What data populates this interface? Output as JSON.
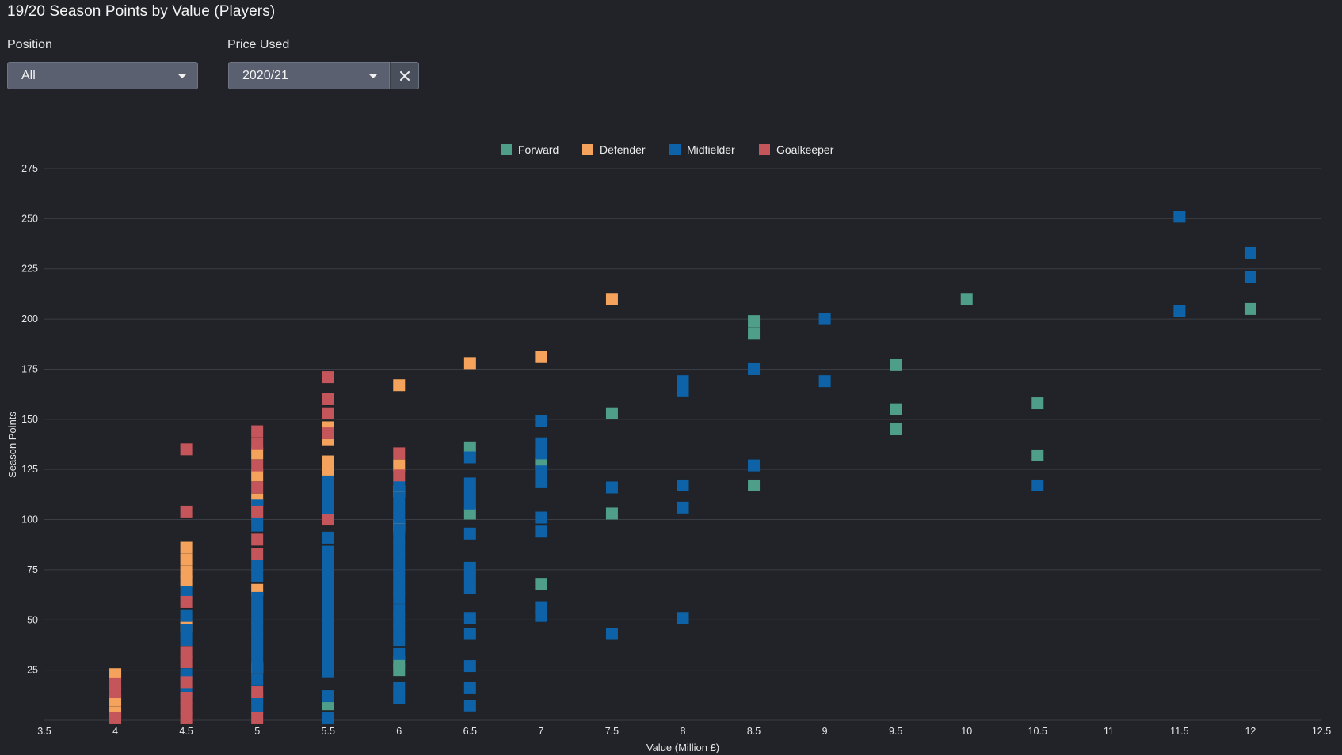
{
  "title": "19/20 Season Points by Value (Players)",
  "filters": {
    "position": {
      "label": "Position",
      "value": "All"
    },
    "price_used": {
      "label": "Price Used",
      "value": "2020/21"
    }
  },
  "icons": {
    "dropdown": "chevron-down-icon",
    "clear": "close-icon"
  },
  "colors": {
    "background": "#212328",
    "Forward": "#4e9e8a",
    "Defender": "#f5a35c",
    "Midfielder": "#0e63a8",
    "Goalkeeper": "#c4555a",
    "gridline": "#3a3d44"
  },
  "chart_data": {
    "type": "scatter",
    "title": "",
    "xlabel": "Value (Million £)",
    "ylabel": "Season Points",
    "xlim": [
      3.5,
      12.5
    ],
    "ylim": [
      0,
      275
    ],
    "x_ticks": [
      "3.5",
      "4",
      "4.5",
      "5",
      "5.5",
      "6",
      "6.5",
      "7",
      "7.5",
      "8",
      "8.5",
      "9",
      "9.5",
      "10",
      "10.5",
      "11",
      "11.5",
      "12",
      "12.5"
    ],
    "y_ticks": [
      "25",
      "50",
      "75",
      "100",
      "125",
      "150",
      "175",
      "200",
      "225",
      "250",
      "275"
    ],
    "grid": "horizontal",
    "legend_position": "top-center",
    "series": [
      {
        "name": "Forward",
        "points": [
          [
            5.5,
            8
          ],
          [
            6,
            25
          ],
          [
            6,
            29
          ],
          [
            6.5,
            103
          ],
          [
            6.5,
            136
          ],
          [
            7,
            128
          ],
          [
            7,
            68
          ],
          [
            7.5,
            103
          ],
          [
            7.5,
            153
          ],
          [
            8.5,
            117
          ],
          [
            8.5,
            193
          ],
          [
            8.5,
            199
          ],
          [
            9.5,
            145
          ],
          [
            9.5,
            155
          ],
          [
            9.5,
            177
          ],
          [
            10,
            210
          ],
          [
            10.5,
            132
          ],
          [
            10.5,
            158
          ],
          [
            12,
            205
          ]
        ]
      },
      {
        "name": "Defender",
        "points": [
          [
            4,
            4
          ],
          [
            4,
            10
          ],
          [
            4,
            23
          ],
          [
            4.5,
            47
          ],
          [
            4.5,
            69
          ],
          [
            4.5,
            74
          ],
          [
            4.5,
            80
          ],
          [
            4.5,
            86
          ],
          [
            5,
            26
          ],
          [
            5,
            65
          ],
          [
            5,
            110
          ],
          [
            5,
            122
          ],
          [
            5,
            133
          ],
          [
            5.5,
            81
          ],
          [
            5.5,
            140
          ],
          [
            5.5,
            146
          ],
          [
            5.5,
            124
          ],
          [
            5.5,
            129
          ],
          [
            6,
            97
          ],
          [
            6,
            114
          ],
          [
            6,
            127
          ],
          [
            6,
            167
          ],
          [
            6.5,
            178
          ],
          [
            7,
            181
          ],
          [
            7.5,
            210
          ]
        ]
      },
      {
        "name": "Midfielder",
        "points": [
          [
            4.5,
            14
          ],
          [
            4.5,
            23
          ],
          [
            4.5,
            40
          ],
          [
            4.5,
            45
          ],
          [
            4.5,
            52
          ],
          [
            4.5,
            64
          ],
          [
            5,
            6
          ],
          [
            5,
            11
          ],
          [
            5,
            20
          ],
          [
            5,
            26
          ],
          [
            5,
            31
          ],
          [
            5,
            36
          ],
          [
            5,
            41
          ],
          [
            5,
            46
          ],
          [
            5,
            51
          ],
          [
            5,
            56
          ],
          [
            5,
            61
          ],
          [
            5,
            72
          ],
          [
            5,
            77
          ],
          [
            5,
            97
          ],
          [
            5,
            102
          ],
          [
            5,
            107
          ],
          [
            5.5,
            1
          ],
          [
            5.5,
            12
          ],
          [
            5.5,
            24
          ],
          [
            5.5,
            29
          ],
          [
            5.5,
            34
          ],
          [
            5.5,
            39
          ],
          [
            5.5,
            44
          ],
          [
            5.5,
            49
          ],
          [
            5.5,
            54
          ],
          [
            5.5,
            59
          ],
          [
            5.5,
            64
          ],
          [
            5.5,
            69
          ],
          [
            5.5,
            74
          ],
          [
            5.5,
            79
          ],
          [
            5.5,
            84
          ],
          [
            5.5,
            91
          ],
          [
            5.5,
            105
          ],
          [
            5.5,
            110
          ],
          [
            5.5,
            115
          ],
          [
            5.5,
            119
          ],
          [
            6,
            11
          ],
          [
            6,
            16
          ],
          [
            6,
            33
          ],
          [
            6,
            40
          ],
          [
            6,
            45
          ],
          [
            6,
            50
          ],
          [
            6,
            55
          ],
          [
            6,
            61
          ],
          [
            6,
            66
          ],
          [
            6,
            71
          ],
          [
            6,
            76
          ],
          [
            6,
            81
          ],
          [
            6,
            86
          ],
          [
            6,
            91
          ],
          [
            6,
            95
          ],
          [
            6,
            101
          ],
          [
            6,
            106
          ],
          [
            6,
            111
          ],
          [
            6,
            117
          ],
          [
            6.5,
            7
          ],
          [
            6.5,
            16
          ],
          [
            6.5,
            27
          ],
          [
            6.5,
            43
          ],
          [
            6.5,
            51
          ],
          [
            6.5,
            66
          ],
          [
            6.5,
            71
          ],
          [
            6.5,
            76
          ],
          [
            6.5,
            93
          ],
          [
            6.5,
            108
          ],
          [
            6.5,
            113
          ],
          [
            6.5,
            118
          ],
          [
            6.5,
            131
          ],
          [
            7,
            52
          ],
          [
            7,
            56
          ],
          [
            7,
            94
          ],
          [
            7,
            101
          ],
          [
            7,
            119
          ],
          [
            7,
            124
          ],
          [
            7,
            133
          ],
          [
            7,
            138
          ],
          [
            7,
            149
          ],
          [
            7.5,
            43
          ],
          [
            7.5,
            116
          ],
          [
            8,
            51
          ],
          [
            8,
            106
          ],
          [
            8,
            117
          ],
          [
            8,
            164
          ],
          [
            8,
            169
          ],
          [
            8.5,
            127
          ],
          [
            8.5,
            175
          ],
          [
            9,
            169
          ],
          [
            9,
            200
          ],
          [
            10.5,
            117
          ],
          [
            11.5,
            204
          ],
          [
            11.5,
            251
          ],
          [
            12,
            221
          ],
          [
            12,
            233
          ]
        ]
      },
      {
        "name": "Goalkeeper",
        "points": [
          [
            4,
            1
          ],
          [
            4,
            14
          ],
          [
            4,
            18
          ],
          [
            4.5,
            1
          ],
          [
            4.5,
            6
          ],
          [
            4.5,
            11
          ],
          [
            4.5,
            19
          ],
          [
            4.5,
            29
          ],
          [
            4.5,
            34
          ],
          [
            4.5,
            59
          ],
          [
            4.5,
            104
          ],
          [
            4.5,
            135
          ],
          [
            5,
            1
          ],
          [
            5,
            14
          ],
          [
            5,
            83
          ],
          [
            5,
            90
          ],
          [
            5,
            104
          ],
          [
            5,
            116
          ],
          [
            5,
            127
          ],
          [
            5,
            138
          ],
          [
            5,
            144
          ],
          [
            5.5,
            100
          ],
          [
            5.5,
            143
          ],
          [
            5.5,
            153
          ],
          [
            5.5,
            160
          ],
          [
            5.5,
            171
          ],
          [
            6,
            122
          ],
          [
            6,
            133
          ]
        ]
      }
    ]
  }
}
